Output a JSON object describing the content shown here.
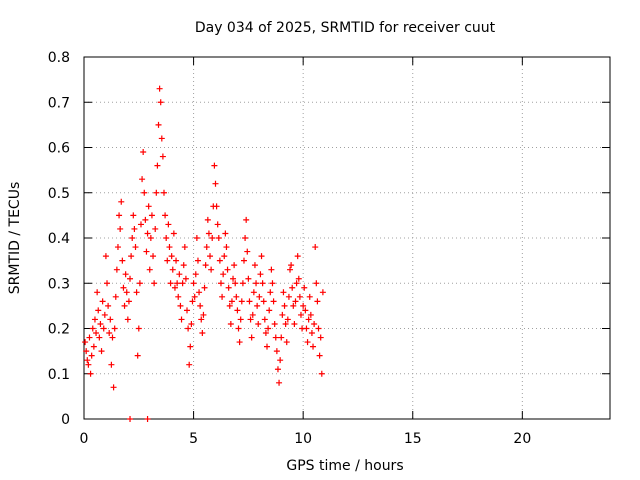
{
  "chart_data": {
    "type": "scatter",
    "title": "Day 034 of 2025, SRMTID for receiver cuut",
    "xlabel": "GPS time / hours",
    "ylabel": "SRMTID / TECUs",
    "xlim": [
      0,
      24
    ],
    "ylim": [
      0,
      0.8
    ],
    "xticks": [
      0,
      5,
      10,
      15,
      20
    ],
    "xtick_labels": [
      "0",
      "5",
      "10",
      "15",
      "20"
    ],
    "yticks": [
      0,
      0.1,
      0.2,
      0.3,
      0.4,
      0.5,
      0.6,
      0.7,
      0.8
    ],
    "ytick_labels": [
      "0",
      "0.1",
      "0.2",
      "0.3",
      "0.4",
      "0.5",
      "0.6",
      "0.7",
      "0.8"
    ],
    "grid": true,
    "marker": "plus",
    "color": "#ff0000",
    "series": [
      {
        "name": "SRMTID",
        "points": [
          [
            0.05,
            0.17
          ],
          [
            0.1,
            0.15
          ],
          [
            0.15,
            0.13
          ],
          [
            0.2,
            0.12
          ],
          [
            0.25,
            0.18
          ],
          [
            0.3,
            0.1
          ],
          [
            0.35,
            0.14
          ],
          [
            0.4,
            0.2
          ],
          [
            0.45,
            0.16
          ],
          [
            0.5,
            0.22
          ],
          [
            0.55,
            0.19
          ],
          [
            0.6,
            0.28
          ],
          [
            0.65,
            0.24
          ],
          [
            0.7,
            0.18
          ],
          [
            0.75,
            0.21
          ],
          [
            0.8,
            0.15
          ],
          [
            0.85,
            0.26
          ],
          [
            0.9,
            0.2
          ],
          [
            0.95,
            0.23
          ],
          [
            1.0,
            0.36
          ],
          [
            1.05,
            0.3
          ],
          [
            1.1,
            0.25
          ],
          [
            1.15,
            0.19
          ],
          [
            1.2,
            0.22
          ],
          [
            1.25,
            0.12
          ],
          [
            1.3,
            0.18
          ],
          [
            1.35,
            0.07
          ],
          [
            1.4,
            0.2
          ],
          [
            1.45,
            0.27
          ],
          [
            1.5,
            0.33
          ],
          [
            1.55,
            0.38
          ],
          [
            1.6,
            0.45
          ],
          [
            1.65,
            0.42
          ],
          [
            1.7,
            0.48
          ],
          [
            1.75,
            0.35
          ],
          [
            1.8,
            0.29
          ],
          [
            1.85,
            0.25
          ],
          [
            1.9,
            0.32
          ],
          [
            1.95,
            0.28
          ],
          [
            2.0,
            0.22
          ],
          [
            2.05,
            0.26
          ],
          [
            2.1,
            0.31
          ],
          [
            2.15,
            0.36
          ],
          [
            2.2,
            0.4
          ],
          [
            2.25,
            0.45
          ],
          [
            2.3,
            0.42
          ],
          [
            2.35,
            0.38
          ],
          [
            2.4,
            0.28
          ],
          [
            2.45,
            0.14
          ],
          [
            2.5,
            0.2
          ],
          [
            2.55,
            0.3
          ],
          [
            2.6,
            0.43
          ],
          [
            2.65,
            0.53
          ],
          [
            2.7,
            0.59
          ],
          [
            2.75,
            0.5
          ],
          [
            2.8,
            0.44
          ],
          [
            2.85,
            0.37
          ],
          [
            2.9,
            0.41
          ],
          [
            2.95,
            0.47
          ],
          [
            3.0,
            0.33
          ],
          [
            3.05,
            0.4
          ],
          [
            3.1,
            0.45
          ],
          [
            3.15,
            0.36
          ],
          [
            3.2,
            0.3
          ],
          [
            3.25,
            0.42
          ],
          [
            3.3,
            0.5
          ],
          [
            3.35,
            0.56
          ],
          [
            3.4,
            0.65
          ],
          [
            3.45,
            0.73
          ],
          [
            3.5,
            0.7
          ],
          [
            3.55,
            0.62
          ],
          [
            3.6,
            0.58
          ],
          [
            3.65,
            0.5
          ],
          [
            3.7,
            0.45
          ],
          [
            3.75,
            0.4
          ],
          [
            3.8,
            0.35
          ],
          [
            3.85,
            0.43
          ],
          [
            3.9,
            0.38
          ],
          [
            3.95,
            0.3
          ],
          [
            4.0,
            0.36
          ],
          [
            4.05,
            0.33
          ],
          [
            4.1,
            0.41
          ],
          [
            4.15,
            0.29
          ],
          [
            4.2,
            0.35
          ],
          [
            4.25,
            0.3
          ],
          [
            4.3,
            0.27
          ],
          [
            4.35,
            0.32
          ],
          [
            4.4,
            0.25
          ],
          [
            4.45,
            0.22
          ],
          [
            4.5,
            0.3
          ],
          [
            4.55,
            0.34
          ],
          [
            4.6,
            0.38
          ],
          [
            4.65,
            0.31
          ],
          [
            4.7,
            0.24
          ],
          [
            4.75,
            0.2
          ],
          [
            4.8,
            0.12
          ],
          [
            4.85,
            0.16
          ],
          [
            4.9,
            0.21
          ],
          [
            4.95,
            0.26
          ],
          [
            5.0,
            0.3
          ],
          [
            5.05,
            0.27
          ],
          [
            5.1,
            0.32
          ],
          [
            5.15,
            0.4
          ],
          [
            5.2,
            0.35
          ],
          [
            5.25,
            0.28
          ],
          [
            5.3,
            0.25
          ],
          [
            5.35,
            0.22
          ],
          [
            5.4,
            0.19
          ],
          [
            5.45,
            0.23
          ],
          [
            5.5,
            0.29
          ],
          [
            5.55,
            0.34
          ],
          [
            5.6,
            0.38
          ],
          [
            5.65,
            0.44
          ],
          [
            5.7,
            0.41
          ],
          [
            5.75,
            0.36
          ],
          [
            5.8,
            0.33
          ],
          [
            5.85,
            0.4
          ],
          [
            5.9,
            0.47
          ],
          [
            5.95,
            0.56
          ],
          [
            6.0,
            0.52
          ],
          [
            6.05,
            0.47
          ],
          [
            6.1,
            0.43
          ],
          [
            6.15,
            0.4
          ],
          [
            6.2,
            0.35
          ],
          [
            6.25,
            0.3
          ],
          [
            6.3,
            0.27
          ],
          [
            6.35,
            0.32
          ],
          [
            6.4,
            0.36
          ],
          [
            6.45,
            0.41
          ],
          [
            6.5,
            0.38
          ],
          [
            6.55,
            0.33
          ],
          [
            6.6,
            0.29
          ],
          [
            6.65,
            0.25
          ],
          [
            6.7,
            0.21
          ],
          [
            6.75,
            0.26
          ],
          [
            6.8,
            0.31
          ],
          [
            6.85,
            0.34
          ],
          [
            6.9,
            0.3
          ],
          [
            6.95,
            0.27
          ],
          [
            7.0,
            0.24
          ],
          [
            7.05,
            0.2
          ],
          [
            7.1,
            0.17
          ],
          [
            7.15,
            0.22
          ],
          [
            7.2,
            0.26
          ],
          [
            7.25,
            0.3
          ],
          [
            7.3,
            0.35
          ],
          [
            7.35,
            0.4
          ],
          [
            7.4,
            0.44
          ],
          [
            7.45,
            0.37
          ],
          [
            7.5,
            0.31
          ],
          [
            7.55,
            0.26
          ],
          [
            7.6,
            0.22
          ],
          [
            7.65,
            0.18
          ],
          [
            7.7,
            0.23
          ],
          [
            7.75,
            0.28
          ],
          [
            7.8,
            0.34
          ],
          [
            7.85,
            0.3
          ],
          [
            7.9,
            0.25
          ],
          [
            7.95,
            0.21
          ],
          [
            8.0,
            0.27
          ],
          [
            8.05,
            0.32
          ],
          [
            8.1,
            0.36
          ],
          [
            8.15,
            0.3
          ],
          [
            8.2,
            0.26
          ],
          [
            8.25,
            0.22
          ],
          [
            8.3,
            0.19
          ],
          [
            8.35,
            0.16
          ],
          [
            8.4,
            0.2
          ],
          [
            8.45,
            0.24
          ],
          [
            8.5,
            0.28
          ],
          [
            8.55,
            0.33
          ],
          [
            8.6,
            0.3
          ],
          [
            8.65,
            0.26
          ],
          [
            8.7,
            0.21
          ],
          [
            8.75,
            0.18
          ],
          [
            8.8,
            0.15
          ],
          [
            8.85,
            0.11
          ],
          [
            8.9,
            0.08
          ],
          [
            8.95,
            0.13
          ],
          [
            9.0,
            0.18
          ],
          [
            9.05,
            0.23
          ],
          [
            9.1,
            0.28
          ],
          [
            9.15,
            0.25
          ],
          [
            9.2,
            0.21
          ],
          [
            9.25,
            0.17
          ],
          [
            9.3,
            0.22
          ],
          [
            9.35,
            0.27
          ],
          [
            9.4,
            0.33
          ],
          [
            9.45,
            0.34
          ],
          [
            9.5,
            0.29
          ],
          [
            9.55,
            0.25
          ],
          [
            9.6,
            0.21
          ],
          [
            9.65,
            0.26
          ],
          [
            9.7,
            0.3
          ],
          [
            9.75,
            0.36
          ],
          [
            9.8,
            0.31
          ],
          [
            9.85,
            0.27
          ],
          [
            9.9,
            0.23
          ],
          [
            9.95,
            0.2
          ],
          [
            10.0,
            0.25
          ],
          [
            10.05,
            0.29
          ],
          [
            10.1,
            0.24
          ],
          [
            10.15,
            0.2
          ],
          [
            10.2,
            0.17
          ],
          [
            10.25,
            0.22
          ],
          [
            10.3,
            0.27
          ],
          [
            10.35,
            0.23
          ],
          [
            10.4,
            0.19
          ],
          [
            10.45,
            0.16
          ],
          [
            10.5,
            0.21
          ],
          [
            10.55,
            0.38
          ],
          [
            10.6,
            0.3
          ],
          [
            10.65,
            0.26
          ],
          [
            10.7,
            0.2
          ],
          [
            10.75,
            0.14
          ],
          [
            10.8,
            0.18
          ],
          [
            10.85,
            0.1
          ],
          [
            10.9,
            0.28
          ],
          [
            2.1,
            0.0
          ],
          [
            2.9,
            0.0
          ]
        ]
      }
    ]
  }
}
